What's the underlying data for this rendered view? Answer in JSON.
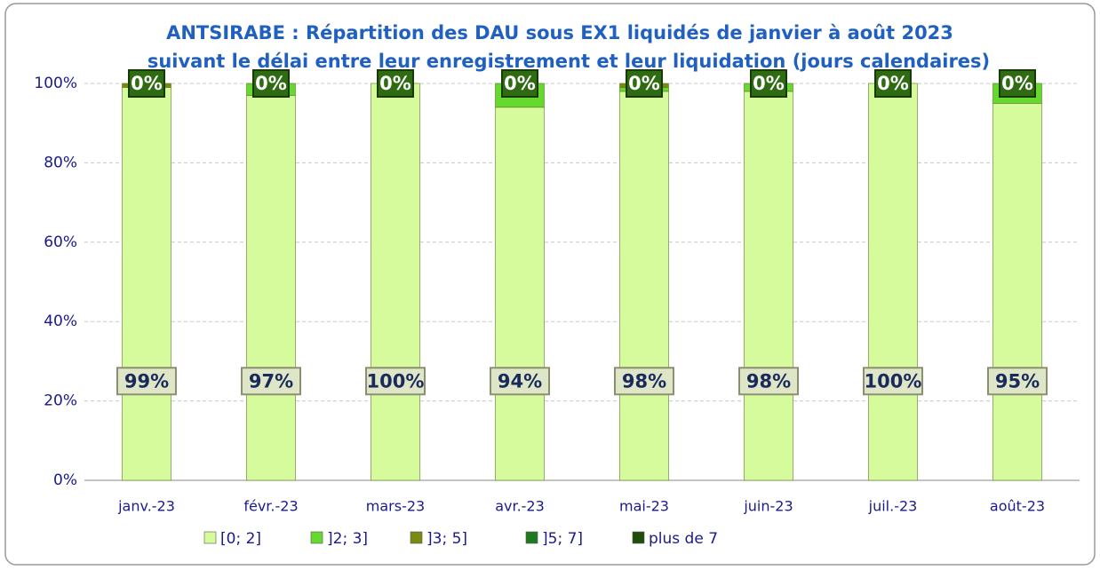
{
  "chart_data": {
    "type": "stacked_bar",
    "title": "ANTSIRABE : Répartition des DAU sous EX1 liquidés de janvier à août 2023",
    "subtitle": "suivant le délai entre leur enregistrement et leur liquidation (jours calendaires)",
    "categories": [
      "janv.-23",
      "févr.-23",
      "mars-23",
      "avr.-23",
      "mai-23",
      "juin-23",
      "juil.-23",
      "août-23"
    ],
    "series": [
      {
        "name": "[0; 2]",
        "color": "#d6fb9c",
        "values": [
          99,
          97,
          100,
          94,
          98,
          98,
          100,
          95
        ],
        "value_labels": [
          "99%",
          "97%",
          "100%",
          "94%",
          "98%",
          "98%",
          "100%",
          "95%"
        ]
      },
      {
        "name": "]2; 3]",
        "color": "#66d92e",
        "values": [
          0,
          3,
          0,
          6,
          1,
          2,
          0,
          5
        ]
      },
      {
        "name": "]3; 5]",
        "color": "#7a8a12",
        "values": [
          1,
          0,
          0,
          0,
          1,
          0,
          0,
          0
        ]
      },
      {
        "name": "]5; 7]",
        "color": "#1f7a1f",
        "values": [
          0,
          0,
          0,
          0,
          0,
          0,
          0,
          0
        ]
      },
      {
        "name": "plus de 7",
        "color": "#1e4d0c",
        "values": [
          0,
          0,
          0,
          0,
          0,
          0,
          0,
          0
        ],
        "value_labels": [
          "0%",
          "0%",
          "0%",
          "0%",
          "0%",
          "0%",
          "0%",
          "0%"
        ]
      }
    ],
    "ylim": [
      0,
      100
    ],
    "yticks": [
      {
        "value": 0,
        "label": "0%"
      },
      {
        "value": 20,
        "label": "20%"
      },
      {
        "value": 40,
        "label": "40%"
      },
      {
        "value": 60,
        "label": "60%"
      },
      {
        "value": 80,
        "label": "80%"
      },
      {
        "value": 100,
        "label": "100%"
      }
    ],
    "grid": true
  }
}
